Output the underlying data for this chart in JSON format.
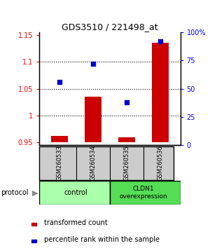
{
  "title": "GDS3510 / 221498_at",
  "samples": [
    "GSM260533",
    "GSM260534",
    "GSM260535",
    "GSM260536"
  ],
  "bar_values": [
    0.962,
    1.035,
    0.96,
    1.135
  ],
  "bar_baseline": 0.95,
  "scatter_values": [
    56,
    72,
    38,
    92
  ],
  "ylim_left": [
    0.945,
    1.155
  ],
  "ylim_right": [
    0,
    100
  ],
  "left_ticks": [
    0.95,
    1.0,
    1.05,
    1.1,
    1.15
  ],
  "left_tick_labels": [
    "0.95",
    "1",
    "1.05",
    "1.1",
    "1.15"
  ],
  "right_ticks": [
    0,
    25,
    50,
    75,
    100
  ],
  "right_tick_labels": [
    "0",
    "25",
    "50",
    "75",
    "100%"
  ],
  "bar_color": "#cc0000",
  "scatter_color": "#0000cc",
  "group1_label": "control",
  "group2_label": "CLDN1\noverexpression",
  "group1_color": "#aaffaa",
  "group2_color": "#55dd55",
  "sample_box_color": "#cccccc",
  "protocol_label": "protocol",
  "legend_bar_label": "transformed count",
  "legend_scatter_label": "percentile rank within the sample",
  "dotted_ticks": [
    1.0,
    1.05,
    1.1
  ],
  "background_color": "#ffffff",
  "bar_width": 0.5
}
